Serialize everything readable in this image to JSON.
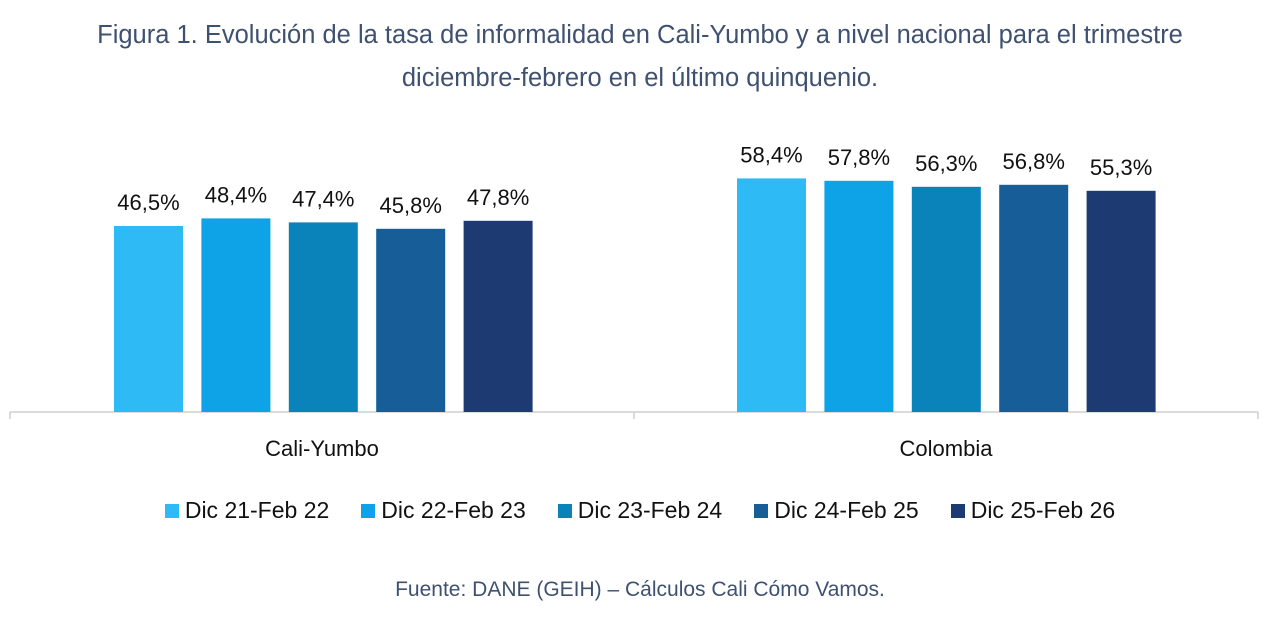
{
  "title_line1": "Figura 1. Evolución de la tasa de informalidad en Cali-Yumbo y a nivel nacional para el trimestre",
  "title_line2": "diciembre-febrero en el último quinquenio.",
  "source": "Fuente: DANE (GEIH) – Cálculos Cali Cómo Vamos.",
  "chart_data": {
    "type": "bar",
    "categories": [
      "Cali-Yumbo",
      "Colombia"
    ],
    "series": [
      {
        "name": "Dic 21-Feb 22",
        "color": "#2ebbf5",
        "values": [
          46.5,
          58.4
        ],
        "labels": [
          "46,5%",
          "58,4%"
        ]
      },
      {
        "name": "Dic 22-Feb 23",
        "color": "#0ea2e6",
        "values": [
          48.4,
          57.8
        ],
        "labels": [
          "48,4%",
          "57,8%"
        ]
      },
      {
        "name": "Dic 23-Feb 24",
        "color": "#0a83bb",
        "values": [
          47.4,
          56.3
        ],
        "labels": [
          "47,4%",
          "56,3%"
        ]
      },
      {
        "name": "Dic 24-Feb 25",
        "color": "#175e98",
        "values": [
          45.8,
          56.8
        ],
        "labels": [
          "45,8%",
          "56,8%"
        ]
      },
      {
        "name": "Dic 25-Feb 26",
        "color": "#1e3a72",
        "values": [
          47.8,
          55.3
        ],
        "labels": [
          "47,8%",
          "55,3%"
        ]
      }
    ],
    "legend_position": "bottom",
    "grid": false
  }
}
